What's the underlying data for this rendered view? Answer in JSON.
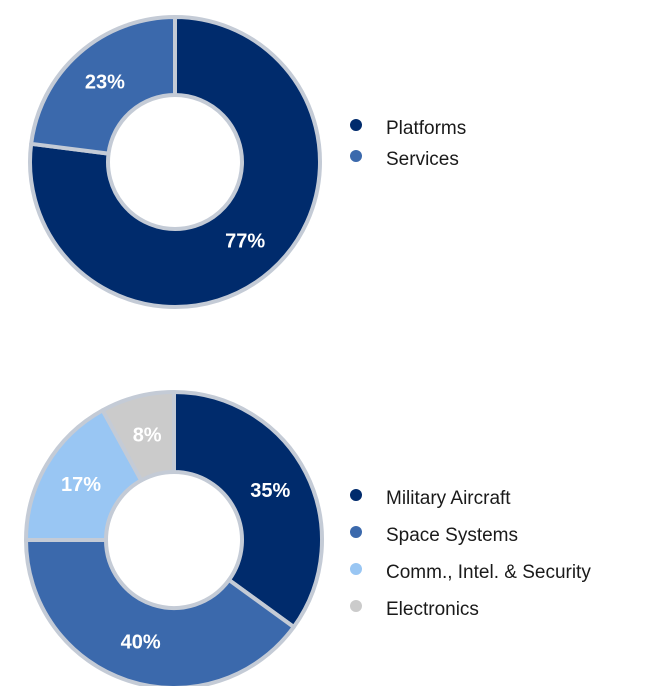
{
  "chart_data": [
    {
      "type": "pie",
      "style": "donut",
      "categories": [
        "Platforms",
        "Services"
      ],
      "values": [
        77,
        23
      ],
      "labels": [
        "77%",
        "23%"
      ],
      "colors": [
        "#002b6c",
        "#3b69ac"
      ],
      "legend_position": "right"
    },
    {
      "type": "pie",
      "style": "donut",
      "categories": [
        "Military Aircraft",
        "Space Systems",
        "Comm., Intel. & Security",
        "Electronics"
      ],
      "values": [
        35,
        40,
        17,
        8
      ],
      "labels": [
        "35%",
        "40%",
        "17%",
        "8%"
      ],
      "colors": [
        "#002b6c",
        "#3b69ac",
        "#99c6f3",
        "#cbcbcb"
      ],
      "legend_position": "right"
    }
  ],
  "stroke_color": "#c4cbd6"
}
